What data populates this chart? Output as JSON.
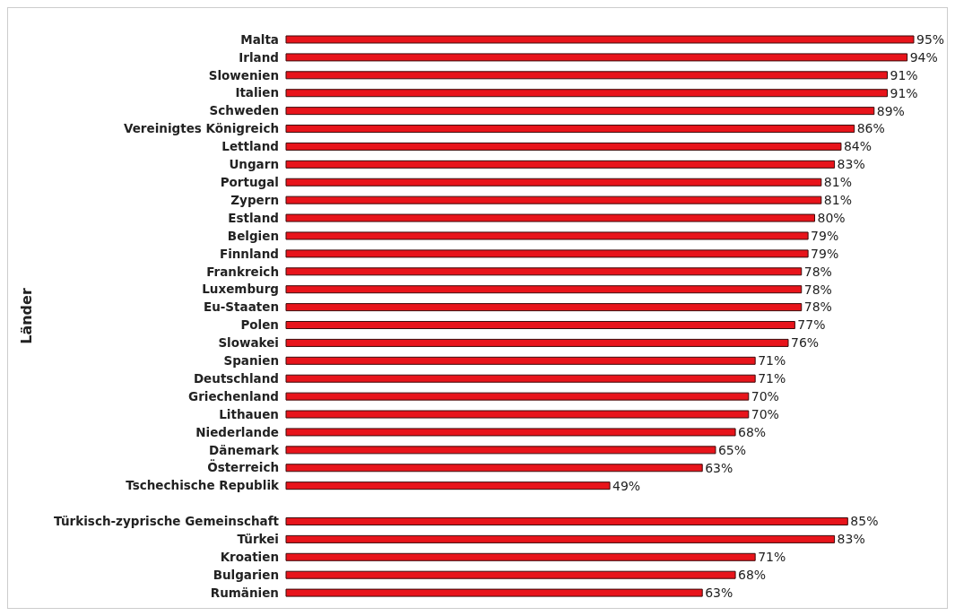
{
  "chart_data": {
    "type": "bar",
    "orientation": "horizontal",
    "ylabel": "Länder",
    "categories": [
      "Malta",
      "Irland",
      "Slowenien",
      "Italien",
      "Schweden",
      "Vereinigtes Königreich",
      "Lettland",
      "Ungarn",
      "Portugal",
      "Zypern",
      "Estland",
      "Belgien",
      "Finnland",
      "Frankreich",
      "Luxemburg",
      "Eu-Staaten",
      "Polen",
      "Slowakei",
      "Spanien",
      "Deutschland",
      "Griechenland",
      "Lithauen",
      "Niederlande",
      "Dänemark",
      "Österreich",
      "Tschechische Republik",
      null,
      "Türkisch-zyprische Gemeinschaft",
      "Türkei",
      "Kroatien",
      "Bulgarien",
      "Rumänien"
    ],
    "values": [
      95,
      94,
      91,
      91,
      89,
      86,
      84,
      83,
      81,
      81,
      80,
      79,
      79,
      78,
      78,
      78,
      77,
      76,
      71,
      71,
      70,
      70,
      68,
      65,
      63,
      49,
      null,
      85,
      83,
      71,
      68,
      63
    ],
    "value_labels": [
      "95%",
      "94%",
      "91%",
      "91%",
      "89%",
      "86%",
      "84%",
      "83%",
      "81%",
      "81%",
      "80%",
      "79%",
      "79%",
      "78%",
      "78%",
      "78%",
      "77%",
      "76%",
      "71%",
      "71%",
      "70%",
      "70%",
      "68%",
      "65%",
      "63%",
      "49%",
      null,
      "85%",
      "83%",
      "71%",
      "68%",
      "63%"
    ],
    "color": "#e8141b"
  }
}
